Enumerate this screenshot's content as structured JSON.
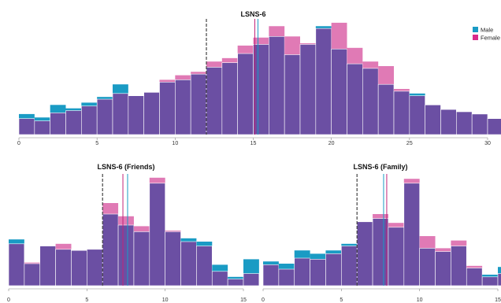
{
  "colors": {
    "male": "#1a9bc4",
    "female": "#e07ab5",
    "overlap": "#6b4fa3",
    "mean_male": "#1a9bc4",
    "mean_female": "#c2247a",
    "median": "#444444"
  },
  "legend": {
    "entries": [
      {
        "label": "Male",
        "color": "#1a9bc4"
      },
      {
        "label": "Female",
        "color": "#d92b8a"
      }
    ]
  },
  "chart_data": [
    {
      "type": "histogram",
      "title": "LSNS-6",
      "xlim": [
        0,
        30
      ],
      "x_ticks": [
        0,
        5,
        10,
        15,
        20,
        25,
        30
      ],
      "bin_width": 1,
      "ylim": [
        0,
        100
      ],
      "median": 12,
      "mean_female": 15.1,
      "mean_male": 15.3,
      "series": [
        {
          "name": "Male",
          "bin_start": 0,
          "values": [
            18,
            15,
            26,
            23,
            28,
            33,
            44,
            34,
            37,
            46,
            48,
            53,
            59,
            63,
            71,
            79,
            86,
            70,
            79,
            95,
            75,
            62,
            58,
            44,
            38,
            36,
            26,
            22,
            20,
            18,
            14,
            26
          ]
        },
        {
          "name": "Female",
          "bin_start": 0,
          "values": [
            14,
            12,
            19,
            21,
            25,
            31,
            36,
            34,
            37,
            48,
            52,
            55,
            64,
            67,
            78,
            85,
            95,
            86,
            80,
            93,
            98,
            76,
            64,
            60,
            40,
            34,
            26,
            22,
            20,
            18,
            14,
            7
          ]
        }
      ]
    },
    {
      "type": "histogram",
      "title": "LSNS-6 (Friends)",
      "xlim": [
        0,
        15
      ],
      "x_ticks": [
        0,
        5,
        10,
        15
      ],
      "bin_width": 1,
      "ylim": [
        0,
        100
      ],
      "median": 6,
      "mean_female": 7.3,
      "mean_male": 7.6,
      "series": [
        {
          "name": "Male",
          "bin_start": 0,
          "values": [
            42,
            20,
            36,
            33,
            32,
            33,
            65,
            55,
            49,
            93,
            49,
            43,
            40,
            19,
            8,
            24
          ]
        },
        {
          "name": "Female",
          "bin_start": 0,
          "values": [
            38,
            21,
            36,
            38,
            32,
            33,
            75,
            63,
            54,
            98,
            50,
            40,
            36,
            13,
            6,
            11
          ]
        }
      ]
    },
    {
      "type": "histogram",
      "title": "LSNS-6 (Family)",
      "xlim": [
        0,
        15
      ],
      "x_ticks": [
        0,
        5,
        10,
        15
      ],
      "bin_width": 1,
      "ylim": [
        0,
        100
      ],
      "median": 6,
      "mean_female": 7.9,
      "mean_male": 7.7,
      "series": [
        {
          "name": "Male",
          "bin_start": 0,
          "values": [
            22,
            20,
            32,
            29,
            32,
            38,
            58,
            61,
            53,
            93,
            34,
            31,
            36,
            16,
            10,
            17
          ]
        },
        {
          "name": "Female",
          "bin_start": 0,
          "values": [
            19,
            15,
            25,
            24,
            29,
            36,
            58,
            65,
            57,
            97,
            45,
            34,
            41,
            18,
            8,
            11
          ]
        }
      ]
    }
  ]
}
